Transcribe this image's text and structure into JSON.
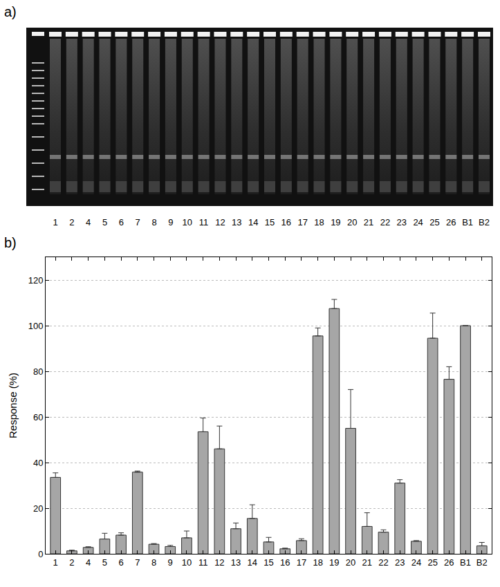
{
  "panels": {
    "a": {
      "label": "a)",
      "lanes": [
        "1",
        "2",
        "4",
        "5",
        "6",
        "7",
        "8",
        "9",
        "10",
        "11",
        "12",
        "13",
        "14",
        "15",
        "16",
        "17",
        "18",
        "19",
        "20",
        "21",
        "22",
        "23",
        "24",
        "25",
        "26",
        "B1",
        "B2"
      ]
    },
    "b": {
      "label": "b)"
    }
  },
  "chart_data": {
    "type": "bar",
    "y_label": "Response (%)",
    "categories": [
      "1",
      "2",
      "4",
      "5",
      "6",
      "7",
      "8",
      "9",
      "10",
      "11",
      "12",
      "13",
      "14",
      "15",
      "16",
      "17",
      "18",
      "19",
      "20",
      "21",
      "22",
      "23",
      "24",
      "25",
      "26",
      "B1",
      "B2"
    ],
    "values": [
      33.5,
      1.3,
      2.8,
      6.5,
      8.2,
      35.8,
      4.2,
      3.2,
      7,
      53.5,
      46,
      11,
      15.5,
      5.2,
      2.2,
      5.8,
      95.5,
      107.5,
      55,
      12,
      9.5,
      31,
      5.5,
      94.5,
      76.5,
      100,
      3.5
    ],
    "errors": [
      2,
      0.3,
      0.3,
      2.5,
      1,
      0.5,
      0.3,
      0.5,
      3,
      6,
      10,
      2.5,
      6,
      2,
      0.3,
      0.8,
      3.5,
      4,
      17,
      6,
      1,
      1.5,
      0.3,
      11,
      5.5,
      0,
      1.5
    ],
    "color": "#a6a6a6",
    "ylim": [
      0,
      130
    ],
    "yticks": [
      0,
      20,
      40,
      60,
      80,
      100,
      120
    ],
    "grid": true
  }
}
